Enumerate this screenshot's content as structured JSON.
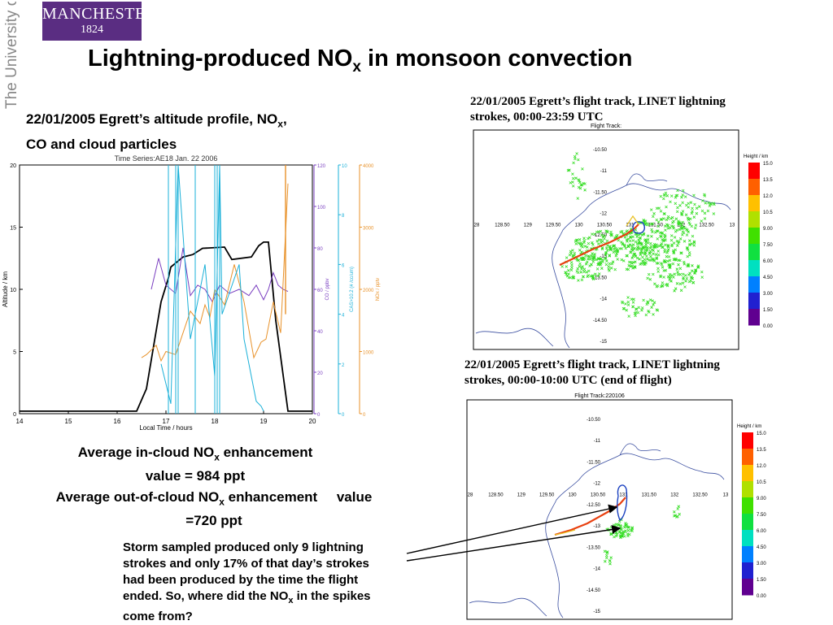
{
  "university_vertical": "The University of Manchester",
  "logo": {
    "name": "MANCHESTER",
    "year": "1824"
  },
  "title": {
    "pre": "Lightning-produced NO",
    "sub": "x",
    "post": " in monsoon convection"
  },
  "left_heading": {
    "l1_pre": "22/01/2005 Egrett’s altitude profile, NO",
    "l1_sub": "x",
    "l1_post": ",",
    "l2": "CO and cloud particles"
  },
  "avg_in": {
    "pre": "Average in-cloud NO",
    "sub": "x",
    "post": " enhancement",
    "line2": "value = 984 ppt"
  },
  "avg_out": {
    "pre": "Average out-of-cloud NO",
    "sub": "x",
    "post": " enhancement     value",
    "line2": "=720 ppt"
  },
  "storm": {
    "l1": "Storm sampled produced only 9 lightning",
    "l2": "strokes and only 17% of that day’s strokes",
    "l3": "had been produced by the time the flight",
    "l4_pre": "ended. So, where did  the NO",
    "l4_sub": "x",
    "l4_post": " in the spikes",
    "l5": "come from?"
  },
  "caption_map1": {
    "l1": "22/01/2005 Egrett’s  flight track, LINET lightning",
    "l2": "strokes, 00:00-23:59 UTC"
  },
  "caption_map2": {
    "l1": "22/01/2005 Egrett’s  flight track, LINET lightning",
    "l2": "strokes, 00:00-10:00 UTC (end of flight)"
  },
  "chart_data": [
    {
      "type": "line",
      "title": "Time Series:AE18 Jan. 22 2006",
      "xlabel": "Local Time / hours",
      "ylabel": "Altitude / km",
      "xlim": [
        14,
        20
      ],
      "ylim": [
        0,
        20
      ],
      "x_ticks": [
        14,
        15,
        16,
        17,
        18,
        19,
        20
      ],
      "y_ticks": [
        0,
        5,
        10,
        15,
        20
      ],
      "right_axes": [
        {
          "label": "CO / ppbv",
          "ticks": [
            0,
            20,
            40,
            60,
            80,
            100,
            120
          ],
          "color": "#7a3fc0"
        },
        {
          "label": "CAS>10.2 (# /cc/um)",
          "ticks": [
            0,
            2,
            4,
            6,
            8,
            10
          ],
          "color": "#1ab0d8"
        },
        {
          "label": "NOx / pptv",
          "ticks": [
            0,
            1000,
            2000,
            3000,
            4000
          ],
          "color": "#e8922a"
        }
      ],
      "series": [
        {
          "color": "#000000",
          "x": [
            14,
            16.4,
            16.6,
            16.9,
            17.05,
            17.1,
            17.35,
            17.55,
            17.75,
            18.2,
            18.35,
            18.75,
            18.9,
            19.0,
            19.1,
            19.25,
            19.5,
            20
          ],
          "y": [
            0.2,
            0.2,
            2.0,
            9.0,
            10.9,
            11.8,
            12.6,
            12.8,
            13.3,
            13.4,
            12.4,
            12.6,
            13.5,
            13.8,
            13.8,
            7.5,
            0.2,
            0.2
          ]
        },
        {
          "color": "#7a3fc0",
          "x": [
            16.7,
            16.85,
            17.0,
            17.2,
            17.35,
            17.5,
            17.65,
            17.8,
            17.95,
            18.1,
            18.3,
            18.5,
            18.7,
            18.85,
            19.0,
            19.1,
            19.2,
            19.3,
            19.4,
            19.5
          ],
          "y": [
            60,
            75,
            62,
            58,
            80,
            57,
            62,
            60,
            54,
            62,
            58,
            60,
            57,
            62,
            55,
            60,
            68,
            62,
            60,
            59
          ]
        },
        {
          "color": "#e8922a",
          "x": [
            16.5,
            16.6,
            16.8,
            16.9,
            17.0,
            17.2,
            17.5,
            17.7,
            17.8,
            17.9,
            18.0,
            18.2,
            18.4,
            18.6,
            18.8,
            18.95,
            19.05,
            19.2,
            19.35,
            19.5
          ],
          "y": [
            900,
            950,
            1100,
            850,
            1000,
            950,
            1650,
            1450,
            1750,
            1550,
            2000,
            1750,
            2400,
            1800,
            900,
            1150,
            1200,
            1800,
            1300,
            3700
          ]
        },
        {
          "color": "#1ab0d8",
          "x": [
            16.9,
            17.1,
            17.25,
            17.5,
            17.8,
            18.0,
            18.1,
            18.15,
            18.5,
            18.6,
            18.75,
            18.85,
            18.95,
            19.0
          ],
          "y": [
            2,
            0.4,
            10,
            3,
            6,
            1.5,
            10,
            4,
            6,
            3,
            1.5,
            0.5,
            0.3,
            0.1
          ]
        }
      ]
    },
    {
      "type": "scatter",
      "title": "Flight Track:",
      "x_ticks": [
        "28",
        "128.50",
        "129",
        "129.50",
        "130",
        "130.50",
        "131",
        "131.50",
        "132",
        "132.50",
        "13"
      ],
      "y_ticks": [
        "-10.50",
        "-11",
        "-11.50",
        "-12",
        "-12.50",
        "-13",
        "-13.50",
        "-14",
        "-14.50",
        "-15"
      ],
      "colorbar": {
        "label": "Height / km",
        "ticks": [
          "15.0",
          "13.5",
          "12.0",
          "10.5",
          "9.00",
          "7.50",
          "6.00",
          "4.50",
          "3.00",
          "1.50",
          "0.00"
        ]
      }
    },
    {
      "type": "scatter",
      "title": "Flight Track:220106",
      "x_ticks": [
        "28",
        "128.50",
        "129",
        "129.50",
        "130",
        "130.50",
        "131",
        "131.50",
        "132",
        "132.50",
        "13"
      ],
      "y_ticks": [
        "-10.50",
        "-11",
        "-11.50",
        "-12",
        "-12.50",
        "-13",
        "-13.50",
        "-14",
        "-14.50",
        "-15"
      ],
      "colorbar": {
        "label": "Height / km",
        "ticks": [
          "15.0",
          "13.5",
          "12.0",
          "10.5",
          "9.00",
          "7.50",
          "6.00",
          "4.50",
          "3.00",
          "1.50",
          "0.00"
        ]
      }
    }
  ]
}
